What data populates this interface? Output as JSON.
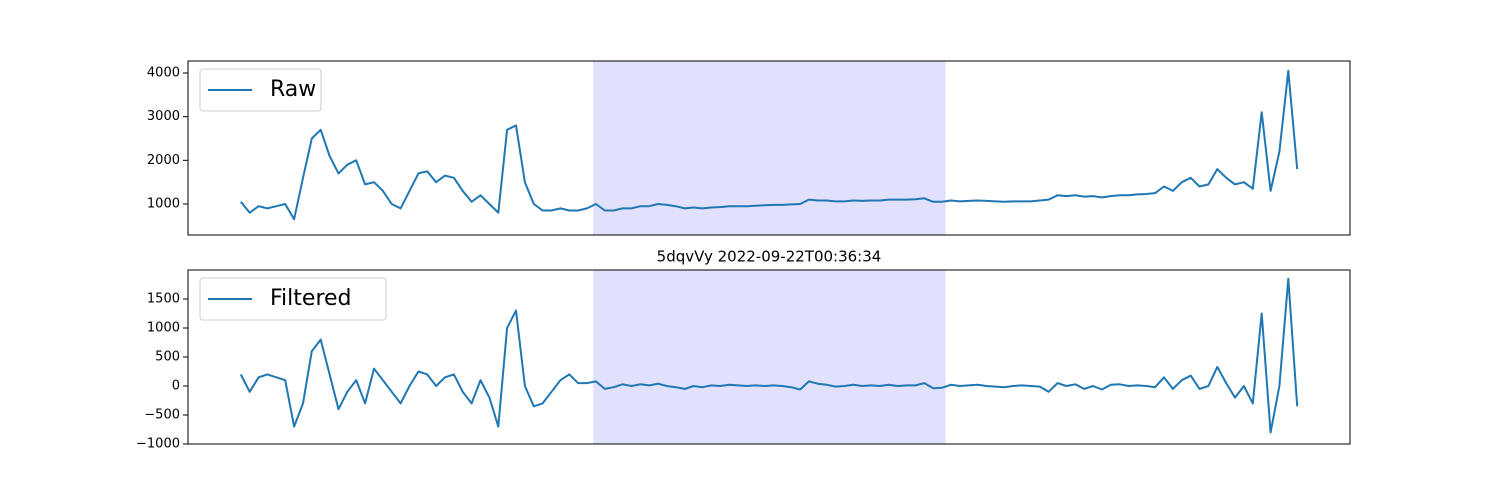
{
  "chart_data": [
    {
      "type": "line",
      "legend": "upper left",
      "span": {
        "start": 39.7,
        "end": 79.4,
        "color": "#e1e1fb"
      },
      "ylim": [
        290,
        4275
      ],
      "yticks": [
        1000,
        2000,
        3000,
        4000
      ],
      "series": [
        {
          "name": "Raw",
          "color": "#1f77b4",
          "values": [
            1050,
            800,
            950,
            900,
            950,
            1000,
            650,
            1600,
            2500,
            2700,
            2100,
            1700,
            1900,
            2000,
            1450,
            1500,
            1300,
            1000,
            900,
            1300,
            1700,
            1750,
            1500,
            1650,
            1600,
            1300,
            1050,
            1200,
            1000,
            800,
            2700,
            2800,
            1500,
            1000,
            850,
            850,
            900,
            850,
            850,
            900,
            1000,
            850,
            850,
            900,
            900,
            950,
            950,
            1000,
            980,
            950,
            900,
            920,
            900,
            920,
            930,
            950,
            950,
            950,
            960,
            970,
            980,
            980,
            990,
            1000,
            1100,
            1080,
            1080,
            1060,
            1060,
            1080,
            1070,
            1080,
            1080,
            1100,
            1100,
            1100,
            1110,
            1130,
            1050,
            1050,
            1080,
            1060,
            1070,
            1080,
            1070,
            1060,
            1050,
            1060,
            1060,
            1060,
            1080,
            1100,
            1200,
            1180,
            1200,
            1170,
            1180,
            1150,
            1180,
            1200,
            1200,
            1220,
            1230,
            1250,
            1400,
            1300,
            1500,
            1600,
            1400,
            1450,
            1800,
            1600,
            1450,
            1500,
            1350,
            3100,
            1300,
            2200,
            4050,
            1800
          ]
        }
      ]
    },
    {
      "type": "line",
      "legend": "upper left",
      "title": "5dqvVy 2022-09-22T00:36:34",
      "span": {
        "start": 39.7,
        "end": 79.4,
        "color": "#e1e1fb"
      },
      "ylim": [
        -1000,
        2000
      ],
      "yticks": [
        {
          "value": -1000,
          "label": "−1000"
        },
        {
          "value": -500,
          "label": "−500"
        },
        0,
        500,
        1000,
        1500
      ],
      "series": [
        {
          "name": "Filtered",
          "color": "#1f77b4",
          "values": [
            200,
            -100,
            150,
            200,
            150,
            100,
            -700,
            -300,
            600,
            800,
            200,
            -400,
            -100,
            100,
            -300,
            300,
            100,
            -100,
            -300,
            0,
            250,
            200,
            0,
            150,
            200,
            -100,
            -300,
            100,
            -200,
            -700,
            1000,
            1300,
            0,
            -350,
            -300,
            -100,
            100,
            200,
            50,
            50,
            80,
            -50,
            -20,
            30,
            0,
            30,
            10,
            40,
            0,
            -20,
            -50,
            0,
            -20,
            10,
            0,
            20,
            10,
            0,
            10,
            0,
            10,
            0,
            -20,
            -60,
            80,
            40,
            20,
            -10,
            0,
            20,
            0,
            10,
            0,
            20,
            0,
            10,
            10,
            50,
            -40,
            -30,
            20,
            0,
            10,
            20,
            0,
            -10,
            -20,
            0,
            10,
            0,
            -10,
            -100,
            50,
            0,
            30,
            -50,
            0,
            -60,
            20,
            30,
            0,
            10,
            0,
            -20,
            150,
            -50,
            100,
            180,
            -50,
            0,
            330,
            50,
            -200,
            0,
            -300,
            1250,
            -800,
            0,
            1850,
            -350
          ]
        }
      ]
    }
  ]
}
